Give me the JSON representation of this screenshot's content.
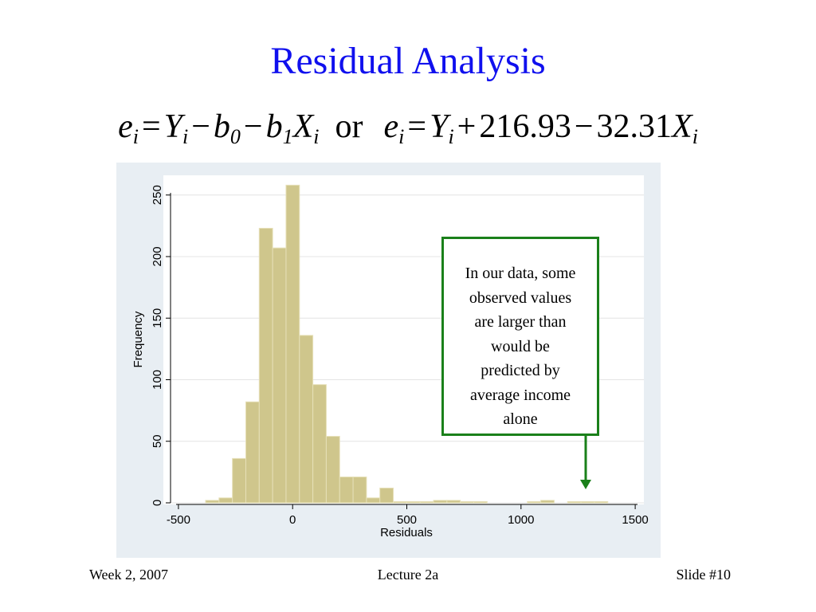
{
  "slide": {
    "title": "Residual Analysis",
    "formula": [
      {
        "text": "e",
        "sub": "i"
      },
      {
        "text": "="
      },
      {
        "text": "Y",
        "sub": "i"
      },
      {
        "text": "−"
      },
      {
        "text": "b",
        "sub": "0"
      },
      {
        "text": "−"
      },
      {
        "text": "b",
        "sub": "1"
      },
      {
        "text": "X",
        "sub": "i"
      },
      {
        "text": "or"
      },
      {
        "text": "e",
        "sub": "i"
      },
      {
        "text": "="
      },
      {
        "text": "Y",
        "sub": "i"
      },
      {
        "text": "+"
      },
      {
        "text": "216.93"
      },
      {
        "text": "−"
      },
      {
        "text": "32.31"
      },
      {
        "text": "X",
        "sub": "i"
      }
    ],
    "footer": {
      "left": "Week 2, 2007",
      "center": "Lecture 2a",
      "right": "Slide #10"
    }
  },
  "chart_data": {
    "type": "histogram",
    "xlabel": "Residuals",
    "ylabel": "Frequency",
    "color": "#cfc68c",
    "bins": [
      -381,
      -322.3,
      -263.6,
      -204.9,
      -146.2,
      -87.5,
      -28.8,
      29.9,
      88.6,
      147.3,
      206,
      264.7,
      323.4,
      382.1,
      440.8,
      499.5,
      558.2,
      616.9,
      675.6,
      734.3,
      793,
      851.7,
      910.4,
      969.1,
      1027.8,
      1086.5,
      1145.2,
      1203.9,
      1262.6,
      1321.3,
      1380
    ],
    "values": [
      2,
      4,
      36,
      82,
      223,
      207,
      258,
      136,
      96,
      54,
      21,
      21,
      4,
      12,
      1,
      1,
      1,
      2,
      2,
      1,
      1,
      0,
      0,
      0,
      1,
      2,
      0,
      1,
      1,
      1
    ],
    "xlim": [
      -566,
      1538
    ],
    "xticks": [
      -500,
      0,
      500,
      1000,
      1500
    ],
    "ylim": [
      0,
      266
    ],
    "yticks": [
      0,
      50,
      100,
      150,
      200,
      250
    ],
    "grid": true,
    "annotation": [
      "In our data, some",
      "observed values",
      "are larger than",
      "would be",
      "predicted by",
      "average income",
      "alone"
    ]
  }
}
